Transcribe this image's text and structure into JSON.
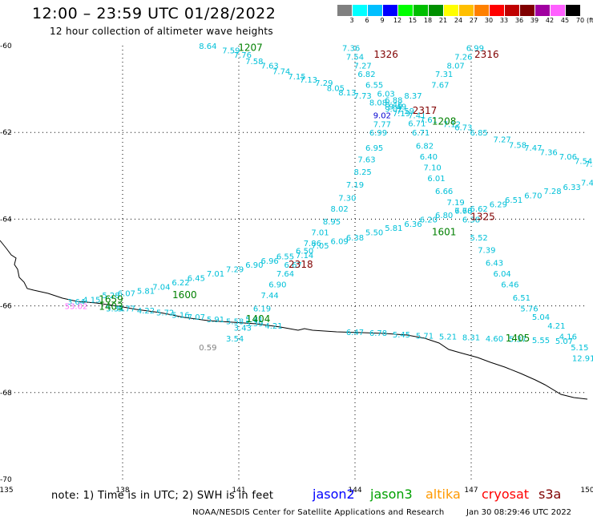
{
  "header": {
    "title": "12:00 – 23:59 UTC 01/28/2022",
    "subtitle": "12 hour collection of altimeter wave heights"
  },
  "scale": {
    "labels": [
      "3",
      "6",
      "9",
      "12",
      "15",
      "18",
      "21",
      "24",
      "27",
      "30",
      "33",
      "36",
      "39",
      "42",
      "45",
      "70",
      "(ft)"
    ],
    "colors": [
      "#808080",
      "#00ffff",
      "#00bfff",
      "#0000ff",
      "#00ff00",
      "#00bf00",
      "#009000",
      "#ffff00",
      "#ffbf00",
      "#ff8000",
      "#ff0000",
      "#c00000",
      "#800000",
      "#a000a0",
      "#ff60ff",
      "#000000"
    ]
  },
  "axes": {
    "lat_labels": [
      "-60",
      "-62",
      "-64",
      "-66",
      "-68",
      "-70"
    ],
    "lon_labels": [
      "135",
      "138",
      "141",
      "144",
      "147",
      "150"
    ],
    "lat_values": [
      -60,
      -62,
      -64,
      -66,
      -68,
      -70
    ],
    "lon_values": [
      135,
      138,
      141,
      144,
      147,
      150
    ]
  },
  "colors": {
    "cyan": "#00c0d8",
    "green": "#008000",
    "darkred": "#800000",
    "blue": "#0000d0",
    "pink": "#ff70ff",
    "gray": "#808080",
    "lightgreen": "#60ff60"
  },
  "tracks": [
    {
      "color": "cyan",
      "points": [
        [
          140.2,
          -60.0,
          "8.64"
        ],
        [
          140.8,
          -60.1,
          "7.59"
        ],
        [
          141.1,
          -60.2,
          "7.76"
        ],
        [
          141.4,
          -60.35,
          "7.58"
        ],
        [
          141.8,
          -60.45,
          "7.63"
        ],
        [
          142.1,
          -60.58,
          "7.74"
        ],
        [
          142.5,
          -60.7,
          "7.15"
        ],
        [
          142.8,
          -60.78,
          "7.13"
        ],
        [
          143.2,
          -60.85,
          "7.29"
        ],
        [
          143.5,
          -60.97,
          "8.05"
        ],
        [
          143.8,
          -61.07,
          "8.13"
        ],
        [
          144.2,
          -61.15,
          "7.73"
        ],
        [
          144.6,
          -61.3,
          "8.08"
        ],
        [
          145.0,
          -61.45,
          "9.02"
        ],
        [
          145.2,
          -61.55,
          "7.19"
        ],
        [
          145.6,
          -61.6,
          "7.41"
        ],
        [
          145.9,
          -61.7,
          "7.61"
        ],
        [
          146.5,
          -61.8,
          "7.12"
        ],
        [
          146.8,
          -61.88,
          "6.73"
        ],
        [
          147.2,
          -62.0,
          "6.85"
        ],
        [
          147.8,
          -62.15,
          "7.27"
        ],
        [
          148.2,
          -62.28,
          "7.58"
        ],
        [
          148.6,
          -62.35,
          "7.47"
        ],
        [
          149.0,
          -62.45,
          "7.36"
        ],
        [
          149.5,
          -62.55,
          "7.06"
        ],
        [
          149.9,
          -62.65,
          "7.54"
        ],
        [
          150.1,
          -62.72,
          "7.4"
        ]
      ]
    },
    {
      "color": "cyan",
      "points": [
        [
          143.9,
          -60.05,
          "7.36"
        ],
        [
          144.0,
          -60.25,
          "7.54"
        ],
        [
          144.2,
          -60.45,
          "7.27"
        ],
        [
          144.3,
          -60.65,
          "6.82"
        ],
        [
          144.5,
          -60.9,
          "6.55"
        ],
        [
          144.8,
          -61.1,
          "6.03"
        ],
        [
          145.0,
          -61.25,
          "6.88"
        ],
        [
          145.1,
          -61.4,
          "9.49"
        ],
        [
          145.3,
          -61.5,
          "7.59"
        ],
        [
          145.6,
          -61.78,
          "6.71"
        ],
        [
          145.7,
          -62.0,
          "6.71"
        ],
        [
          145.8,
          -62.3,
          "6.82"
        ],
        [
          145.9,
          -62.55,
          "6.40"
        ],
        [
          146.0,
          -62.8,
          "7.10"
        ],
        [
          146.1,
          -63.05,
          "6.01"
        ],
        [
          146.3,
          -63.35,
          "6.66"
        ],
        [
          146.6,
          -63.6,
          "7.19"
        ],
        [
          146.8,
          -63.8,
          "7.60"
        ],
        [
          147.0,
          -64.0,
          "6.38"
        ],
        [
          147.2,
          -64.42,
          "5.52"
        ],
        [
          147.4,
          -64.7,
          "7.39"
        ],
        [
          147.6,
          -65.0,
          "6.43"
        ],
        [
          147.8,
          -65.25,
          "6.04"
        ],
        [
          148.0,
          -65.5,
          "6.46"
        ],
        [
          148.3,
          -65.8,
          "6.51"
        ],
        [
          148.5,
          -66.05,
          "5.76"
        ],
        [
          148.8,
          -66.25,
          "5.04"
        ],
        [
          149.2,
          -66.45,
          "4.21"
        ],
        [
          149.5,
          -66.7,
          "4.16"
        ],
        [
          149.8,
          -66.95,
          "5.15"
        ],
        [
          149.9,
          -67.2,
          "12.91"
        ]
      ]
    },
    {
      "color": "cyan",
      "points": [
        [
          147.1,
          -60.05,
          "6.99"
        ],
        [
          146.8,
          -60.25,
          "7.26"
        ],
        [
          146.6,
          -60.45,
          "8.07"
        ],
        [
          146.3,
          -60.65,
          "7.31"
        ],
        [
          146.2,
          -60.9,
          "7.67"
        ],
        [
          145.5,
          -61.15,
          "8.37"
        ],
        [
          145.0,
          -61.35,
          "8.46"
        ],
        [
          144.7,
          -61.8,
          "7.77"
        ],
        [
          144.6,
          -62.0,
          "6.99"
        ],
        [
          144.5,
          -62.35,
          "6.95"
        ],
        [
          144.3,
          -62.62,
          "7.63"
        ],
        [
          144.2,
          -62.9,
          "8.25"
        ],
        [
          144.0,
          -63.2,
          "7.19"
        ],
        [
          143.8,
          -63.5,
          "7.30"
        ],
        [
          143.6,
          -63.75,
          "8.02"
        ],
        [
          143.4,
          -64.05,
          "8.95"
        ],
        [
          143.1,
          -64.3,
          "7.01"
        ],
        [
          142.9,
          -64.55,
          "7.86"
        ],
        [
          142.7,
          -64.82,
          "7.14"
        ],
        [
          142.4,
          -65.05,
          "6.67"
        ],
        [
          142.2,
          -65.25,
          "7.64"
        ],
        [
          142.0,
          -65.5,
          "6.90"
        ],
        [
          141.8,
          -65.75,
          "7.44"
        ],
        [
          141.6,
          -66.05,
          "6.19"
        ],
        [
          141.4,
          -66.3,
          "5.81"
        ],
        [
          141.1,
          -66.5,
          "3.43"
        ],
        [
          140.9,
          -66.75,
          "3.54"
        ]
      ]
    },
    {
      "color": "cyan",
      "points": [
        [
          136.8,
          -65.9,
          "3.64"
        ],
        [
          137.2,
          -65.85,
          "4.15"
        ],
        [
          137.7,
          -65.75,
          "5.28"
        ],
        [
          138.1,
          -65.7,
          "6.07"
        ],
        [
          138.6,
          -65.65,
          "5.81"
        ],
        [
          139.0,
          -65.55,
          "7.04"
        ],
        [
          139.5,
          -65.45,
          "6.22"
        ],
        [
          139.9,
          -65.35,
          "6.45"
        ],
        [
          140.4,
          -65.25,
          "7.01"
        ],
        [
          140.9,
          -65.15,
          "7.29"
        ],
        [
          141.4,
          -65.05,
          "6.90"
        ],
        [
          141.8,
          -64.95,
          "6.96"
        ],
        [
          142.2,
          -64.85,
          "6.55"
        ],
        [
          142.7,
          -64.72,
          "6.50"
        ],
        [
          143.1,
          -64.6,
          "7.05"
        ],
        [
          143.6,
          -64.5,
          "6.09"
        ],
        [
          144.0,
          -64.42,
          "6.38"
        ],
        [
          144.5,
          -64.3,
          "5.50"
        ],
        [
          145.0,
          -64.2,
          "5.81"
        ],
        [
          145.5,
          -64.1,
          "6.36"
        ],
        [
          145.9,
          -64.0,
          "6.20"
        ],
        [
          146.3,
          -63.9,
          "6.80"
        ],
        [
          146.8,
          -63.8,
          "6.78"
        ],
        [
          147.2,
          -63.75,
          "6.62"
        ],
        [
          147.7,
          -63.65,
          "6.29"
        ],
        [
          148.1,
          -63.55,
          "6.51"
        ],
        [
          148.6,
          -63.45,
          "6.70"
        ],
        [
          149.1,
          -63.35,
          "7.28"
        ],
        [
          149.6,
          -63.25,
          "6.33"
        ],
        [
          150.0,
          -63.15,
          "7.4"
        ]
      ]
    },
    {
      "color": "cyan",
      "points": [
        [
          137.8,
          -66.05,
          "5.34"
        ],
        [
          138.1,
          -66.05,
          "5.77"
        ],
        [
          138.6,
          -66.1,
          "4.22"
        ],
        [
          139.1,
          -66.15,
          "5.72"
        ],
        [
          139.5,
          -66.2,
          "5.16"
        ],
        [
          139.9,
          -66.25,
          "7.07"
        ],
        [
          140.4,
          -66.3,
          "5.91"
        ],
        [
          140.9,
          -66.35,
          "5.58"
        ],
        [
          141.4,
          -66.4,
          "5.39"
        ],
        [
          141.9,
          -66.45,
          "4.21"
        ],
        [
          144.0,
          -66.6,
          "6.47"
        ],
        [
          144.6,
          -66.62,
          "6.78"
        ],
        [
          145.2,
          -66.65,
          "5.45"
        ],
        [
          145.8,
          -66.68,
          "5.71"
        ],
        [
          146.4,
          -66.7,
          "5.21"
        ],
        [
          147.0,
          -66.72,
          "8.31"
        ],
        [
          147.6,
          -66.75,
          "4.60"
        ],
        [
          148.2,
          -66.76,
          "5.37"
        ],
        [
          148.8,
          -66.78,
          "5.55"
        ],
        [
          149.4,
          -66.8,
          "5.07"
        ]
      ]
    }
  ],
  "singles": [
    {
      "lon": 136.8,
      "lat": -66.0,
      "text": "53.02",
      "color": "pink"
    },
    {
      "lon": 140.2,
      "lat": -66.95,
      "text": "0.59",
      "color": "gray"
    },
    {
      "lon": 144.7,
      "lat": -61.6,
      "text": "9.02",
      "color": "blue"
    }
  ],
  "time_labels": [
    {
      "lon": 141.3,
      "lat": -60.05,
      "text": "1207",
      "color": "green"
    },
    {
      "lon": 144.8,
      "lat": -60.2,
      "text": "1326",
      "color": "darkred"
    },
    {
      "lon": 147.4,
      "lat": -60.2,
      "text": "2316",
      "color": "darkred"
    },
    {
      "lon": 145.8,
      "lat": -61.5,
      "text": "2317",
      "color": "darkred"
    },
    {
      "lon": 146.3,
      "lat": -61.75,
      "text": "1208",
      "color": "green"
    },
    {
      "lon": 147.3,
      "lat": -63.95,
      "text": "1325",
      "color": "darkred"
    },
    {
      "lon": 146.3,
      "lat": -64.3,
      "text": "1601",
      "color": "green"
    },
    {
      "lon": 142.6,
      "lat": -65.05,
      "text": "2318",
      "color": "darkred"
    },
    {
      "lon": 139.6,
      "lat": -65.75,
      "text": "1600",
      "color": "green"
    },
    {
      "lon": 137.7,
      "lat": -65.85,
      "text": "1659",
      "color": "green"
    },
    {
      "lon": 137.7,
      "lat": -66.02,
      "text": "1403",
      "color": "green"
    },
    {
      "lon": 141.5,
      "lat": -66.3,
      "text": "1404",
      "color": "green"
    },
    {
      "lon": 148.2,
      "lat": -66.75,
      "text": "1405",
      "color": "green"
    }
  ],
  "note": "note:  1) Time is in UTC; 2) SWH is in feet",
  "satellites": [
    {
      "name": "jason2",
      "color": "#0000ff"
    },
    {
      "name": "jason3",
      "color": "#00a000"
    },
    {
      "name": "altika",
      "color": "#ff9900"
    },
    {
      "name": "cryosat",
      "color": "#ff0000"
    },
    {
      "name": "s3a",
      "color": "#800000"
    }
  ],
  "footer": {
    "center": "NOAA/NESDIS Center for Satellite Applications and Research",
    "time": "Jan 30 08:29:46 UTC 2022"
  }
}
